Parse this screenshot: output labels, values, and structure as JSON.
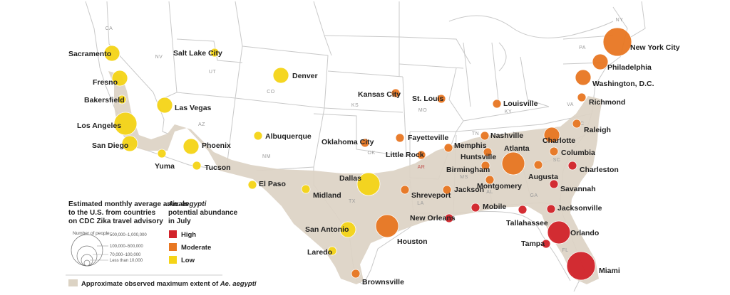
{
  "colors": {
    "high": "#d2232a",
    "moderate": "#e87722",
    "low": "#f5d417",
    "range": "#dcd3c4"
  },
  "cities": [
    {
      "name": "Sacramento",
      "level": "low",
      "size": "s"
    },
    {
      "name": "Fresno",
      "level": "low",
      "size": "s"
    },
    {
      "name": "Bakersfield",
      "level": "low",
      "size": "xs"
    },
    {
      "name": "Los Angeles",
      "level": "low",
      "size": "m"
    },
    {
      "name": "San Diego",
      "level": "low",
      "size": "s"
    },
    {
      "name": "Yuma",
      "level": "low",
      "size": "xs"
    },
    {
      "name": "Salt Lake City",
      "level": "low",
      "size": "xs"
    },
    {
      "name": "Las Vegas",
      "level": "low",
      "size": "s"
    },
    {
      "name": "Phoenix",
      "level": "low",
      "size": "s"
    },
    {
      "name": "Tucson",
      "level": "low",
      "size": "xs"
    },
    {
      "name": "Denver",
      "level": "low",
      "size": "s"
    },
    {
      "name": "Albuquerque",
      "level": "low",
      "size": "xs"
    },
    {
      "name": "El Paso",
      "level": "low",
      "size": "xs"
    },
    {
      "name": "Midland",
      "level": "low",
      "size": "xs"
    },
    {
      "name": "Dallas",
      "level": "low",
      "size": "m"
    },
    {
      "name": "San Antonio",
      "level": "low",
      "size": "s"
    },
    {
      "name": "Laredo",
      "level": "low",
      "size": "xs"
    },
    {
      "name": "Brownsville",
      "level": "moderate",
      "size": "xs"
    },
    {
      "name": "Houston",
      "level": "moderate",
      "size": "m"
    },
    {
      "name": "Kansas City",
      "level": "moderate",
      "size": "xs"
    },
    {
      "name": "Oklahoma City",
      "level": "moderate",
      "size": "xs"
    },
    {
      "name": "Fayetteville",
      "level": "moderate",
      "size": "xs"
    },
    {
      "name": "Little Rock",
      "level": "moderate",
      "size": "xs"
    },
    {
      "name": "St. Louis",
      "level": "moderate",
      "size": "xs"
    },
    {
      "name": "Shreveport",
      "level": "moderate",
      "size": "xs"
    },
    {
      "name": "Jackson",
      "level": "moderate",
      "size": "xs"
    },
    {
      "name": "Memphis",
      "level": "moderate",
      "size": "xs"
    },
    {
      "name": "Louisville",
      "level": "moderate",
      "size": "xs"
    },
    {
      "name": "Nashville",
      "level": "moderate",
      "size": "xs"
    },
    {
      "name": "Huntsville",
      "level": "moderate",
      "size": "xs"
    },
    {
      "name": "Birmingham",
      "level": "moderate",
      "size": "xs"
    },
    {
      "name": "Montgomery",
      "level": "moderate",
      "size": "xs"
    },
    {
      "name": "Atlanta",
      "level": "moderate",
      "size": "m"
    },
    {
      "name": "Augusta",
      "level": "moderate",
      "size": "xs"
    },
    {
      "name": "Columbia",
      "level": "moderate",
      "size": "xs"
    },
    {
      "name": "Charlotte",
      "level": "moderate",
      "size": "s"
    },
    {
      "name": "Raleigh",
      "level": "moderate",
      "size": "xs"
    },
    {
      "name": "Richmond",
      "level": "moderate",
      "size": "xs"
    },
    {
      "name": "Washington, D.C.",
      "level": "moderate",
      "size": "s"
    },
    {
      "name": "Philadelphia",
      "level": "moderate",
      "size": "s"
    },
    {
      "name": "New York City",
      "level": "moderate",
      "size": "l"
    },
    {
      "name": "Charleston",
      "level": "high",
      "size": "xs"
    },
    {
      "name": "Savannah",
      "level": "high",
      "size": "xs"
    },
    {
      "name": "Jacksonville",
      "level": "high",
      "size": "xs"
    },
    {
      "name": "Tallahassee",
      "level": "high",
      "size": "xs"
    },
    {
      "name": "Orlando",
      "level": "high",
      "size": "m"
    },
    {
      "name": "Tampa",
      "level": "high",
      "size": "xs"
    },
    {
      "name": "Miami",
      "level": "high",
      "size": "l"
    },
    {
      "name": "New Orleans",
      "level": "high",
      "size": "xs"
    },
    {
      "name": "Mobile",
      "level": "high",
      "size": "xs"
    }
  ],
  "state_labels": [
    {
      "abbr": "CA"
    },
    {
      "abbr": "NV"
    },
    {
      "abbr": "UT"
    },
    {
      "abbr": "AZ"
    },
    {
      "abbr": "CO"
    },
    {
      "abbr": "NM"
    },
    {
      "abbr": "KS"
    },
    {
      "abbr": "OK"
    },
    {
      "abbr": "TX"
    },
    {
      "abbr": "MO"
    },
    {
      "abbr": "AR"
    },
    {
      "abbr": "LA"
    },
    {
      "abbr": "MS"
    },
    {
      "abbr": "TN"
    },
    {
      "abbr": "KY"
    },
    {
      "abbr": "AL"
    },
    {
      "abbr": "GA"
    },
    {
      "abbr": "FL"
    },
    {
      "abbr": "NC"
    },
    {
      "abbr": "SC"
    },
    {
      "abbr": "VA"
    },
    {
      "abbr": "PA"
    },
    {
      "abbr": "NY"
    }
  ],
  "legend": {
    "arrivals_title": [
      "Estimated monthly average arrivals",
      "to the U.S. from countries",
      "on CDC Zika travel advisory"
    ],
    "number_of_people": "Number of people",
    "size_classes": [
      "500,000–1,000,000",
      "100,000–500,000",
      "70,000–100,000",
      "Less than 10,000"
    ],
    "abundance_species": "Ae. aegypti",
    "abundance_title": [
      "potential abundance",
      "in July"
    ],
    "levels": [
      "High",
      "Moderate",
      "Low"
    ],
    "extent_prefix": "Approximate observed maximum extent of ",
    "extent_species": "Ae. aegypti"
  }
}
